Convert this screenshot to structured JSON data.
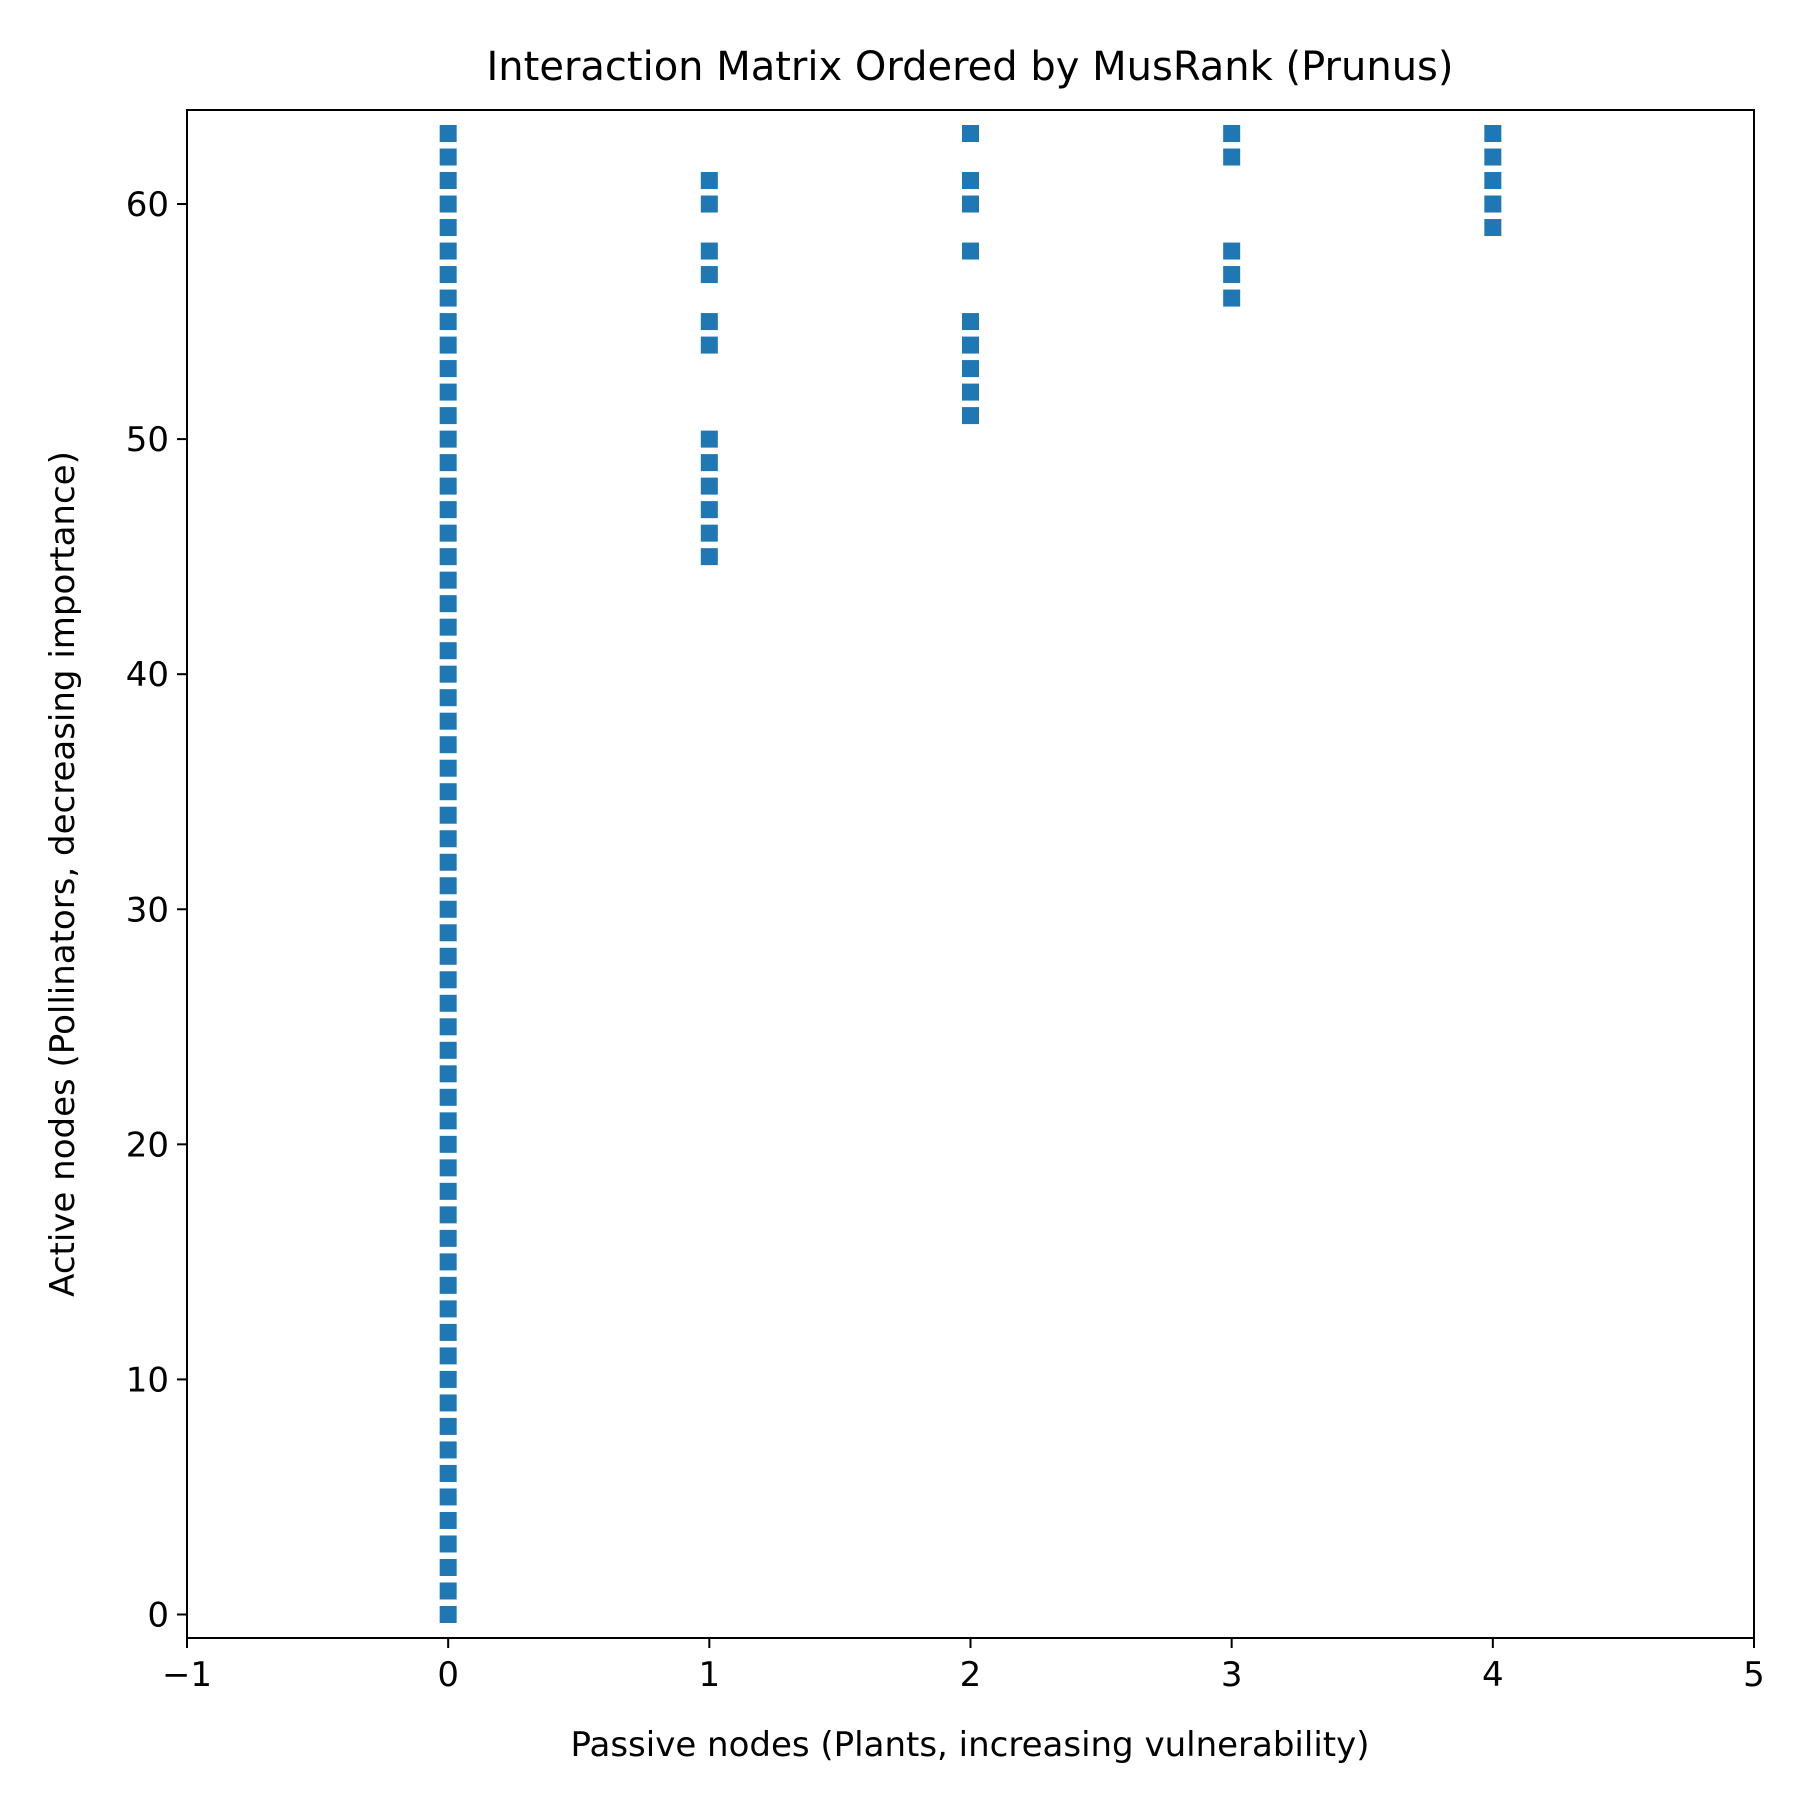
{
  "chart_data": {
    "type": "scatter",
    "title": "Interaction Matrix Ordered by MusRank (Prunus)",
    "xlabel": "Passive nodes (Plants, increasing vulnerability)",
    "ylabel": "Active nodes (Pollinators, decreasing importance)",
    "xlim": [
      -1,
      5
    ],
    "ylim": [
      -1,
      64
    ],
    "xticks": [
      -1,
      0,
      1,
      2,
      3,
      4,
      5
    ],
    "xtick_labels": [
      "−1",
      "0",
      "1",
      "2",
      "3",
      "4",
      "5"
    ],
    "yticks": [
      0,
      10,
      20,
      30,
      40,
      50,
      60
    ],
    "ytick_labels": [
      "0",
      "10",
      "20",
      "30",
      "40",
      "50",
      "60"
    ],
    "grid": false,
    "marker": "square",
    "color": "#1f77b4",
    "columns": [
      {
        "x": 0,
        "y": [
          0,
          1,
          2,
          3,
          4,
          5,
          6,
          7,
          8,
          9,
          10,
          11,
          12,
          13,
          14,
          15,
          16,
          17,
          18,
          19,
          20,
          21,
          22,
          23,
          24,
          25,
          26,
          27,
          28,
          29,
          30,
          31,
          32,
          33,
          34,
          35,
          36,
          37,
          38,
          39,
          40,
          41,
          42,
          43,
          44,
          45,
          46,
          47,
          48,
          49,
          50,
          51,
          52,
          53,
          54,
          55,
          56,
          57,
          58,
          59,
          60,
          61,
          62,
          63
        ]
      },
      {
        "x": 1,
        "y": [
          45,
          46,
          47,
          48,
          49,
          50,
          54,
          55,
          57,
          58,
          60,
          61
        ]
      },
      {
        "x": 2,
        "y": [
          51,
          52,
          53,
          54,
          55,
          58,
          60,
          61,
          63
        ]
      },
      {
        "x": 3,
        "y": [
          56,
          57,
          58,
          62,
          63
        ]
      },
      {
        "x": 4,
        "y": [
          59,
          60,
          61,
          62,
          63
        ]
      }
    ]
  }
}
